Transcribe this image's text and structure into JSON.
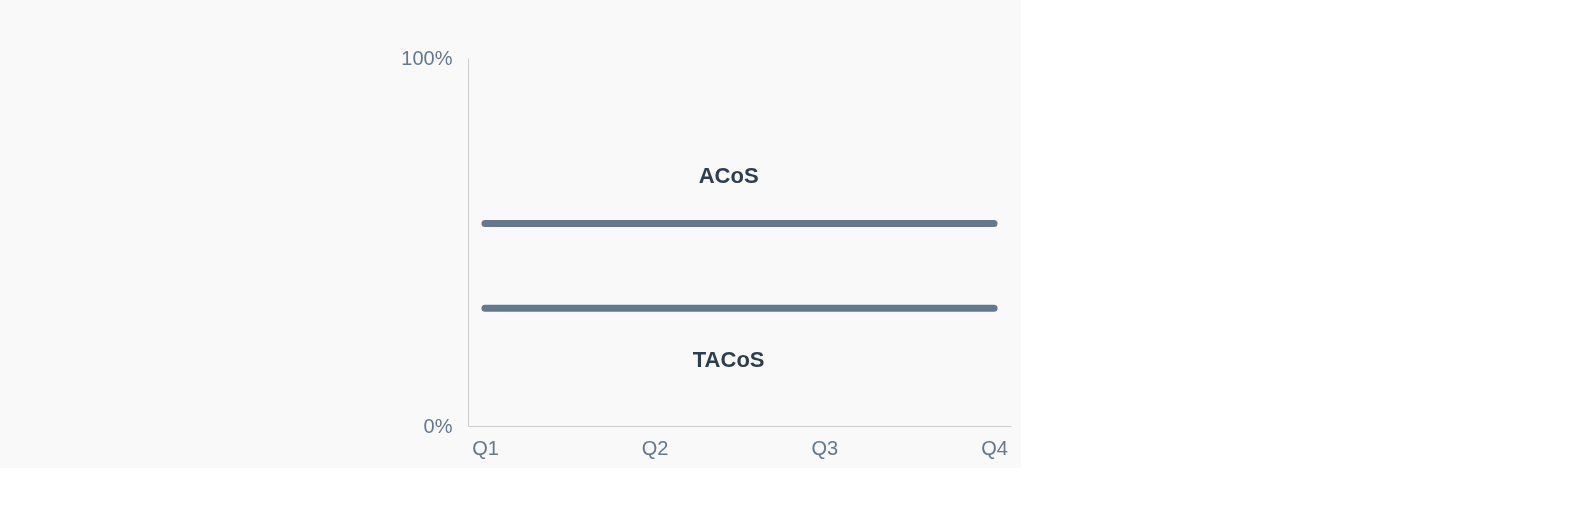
{
  "chart_data": {
    "type": "line",
    "categories": [
      "Q1",
      "Q2",
      "Q3",
      "Q4"
    ],
    "series": [
      {
        "name": "ACoS",
        "color": "#64798f",
        "values": [
          55,
          55,
          55,
          55
        ]
      },
      {
        "name": "TACoS",
        "color": "#64798f",
        "values": [
          32,
          32,
          32,
          32
        ]
      }
    ],
    "ylim": [
      0,
      100
    ],
    "yticks": [
      {
        "value": 0,
        "label": "0%"
      },
      {
        "value": 100,
        "label": "100%"
      }
    ],
    "grid": false,
    "legend": false,
    "line_style": "solid"
  }
}
